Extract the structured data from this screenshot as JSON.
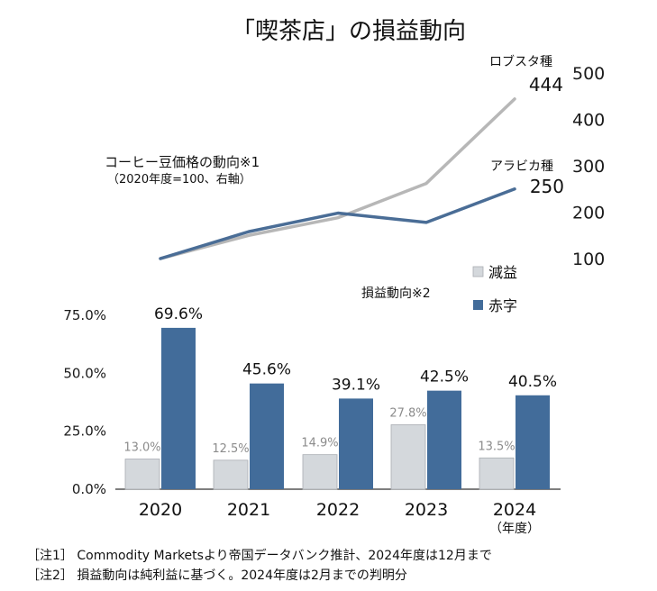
{
  "chart_data": [
    {
      "type": "line",
      "title": "「喫茶店」の損益動向",
      "annotation_title": "コーヒー豆価格の動向※1",
      "annotation_sub": "（2020年度=100、右軸）",
      "x": [
        "2020",
        "2021",
        "2022",
        "2023",
        "2024"
      ],
      "y_axis_side": "right",
      "ylim": [
        100,
        500
      ],
      "yticks": [
        100,
        200,
        300,
        400,
        500
      ],
      "series": [
        {
          "name": "ロブスタ種",
          "values": [
            100,
            150,
            188,
            262,
            444
          ],
          "end_label": "444",
          "color": "#b7b7b7"
        },
        {
          "name": "アラビカ種",
          "values": [
            100,
            158,
            198,
            178,
            250
          ],
          "end_label": "250",
          "color": "#4a6d96"
        }
      ]
    },
    {
      "type": "bar",
      "legend_title": "損益動向※2",
      "categories": [
        "2020",
        "2021",
        "2022",
        "2023",
        "2024"
      ],
      "category_note": "（年度）",
      "ylim": [
        0,
        75
      ],
      "yticks": [
        "0.0%",
        "25.0%",
        "50.0%",
        "75.0%"
      ],
      "ytick_values": [
        0,
        25,
        50,
        75
      ],
      "series": [
        {
          "name": "減益",
          "values": [
            13.0,
            12.5,
            14.9,
            27.8,
            13.5
          ],
          "labels": [
            "13.0%",
            "12.5%",
            "14.9%",
            "27.8%",
            "13.5%"
          ],
          "color": "#d4d8dc"
        },
        {
          "name": "赤字",
          "values": [
            69.6,
            45.6,
            39.1,
            42.5,
            40.5
          ],
          "labels": [
            "69.6%",
            "45.6%",
            "39.1%",
            "42.5%",
            "40.5%"
          ],
          "color": "#426c9a"
        }
      ]
    }
  ],
  "notes": [
    "［注1］ Commodity Marketsより帝国データバンク推計、2024年度は12月まで",
    "［注2］ 損益動向は純利益に基づく。2024年度は2月までの判明分"
  ]
}
